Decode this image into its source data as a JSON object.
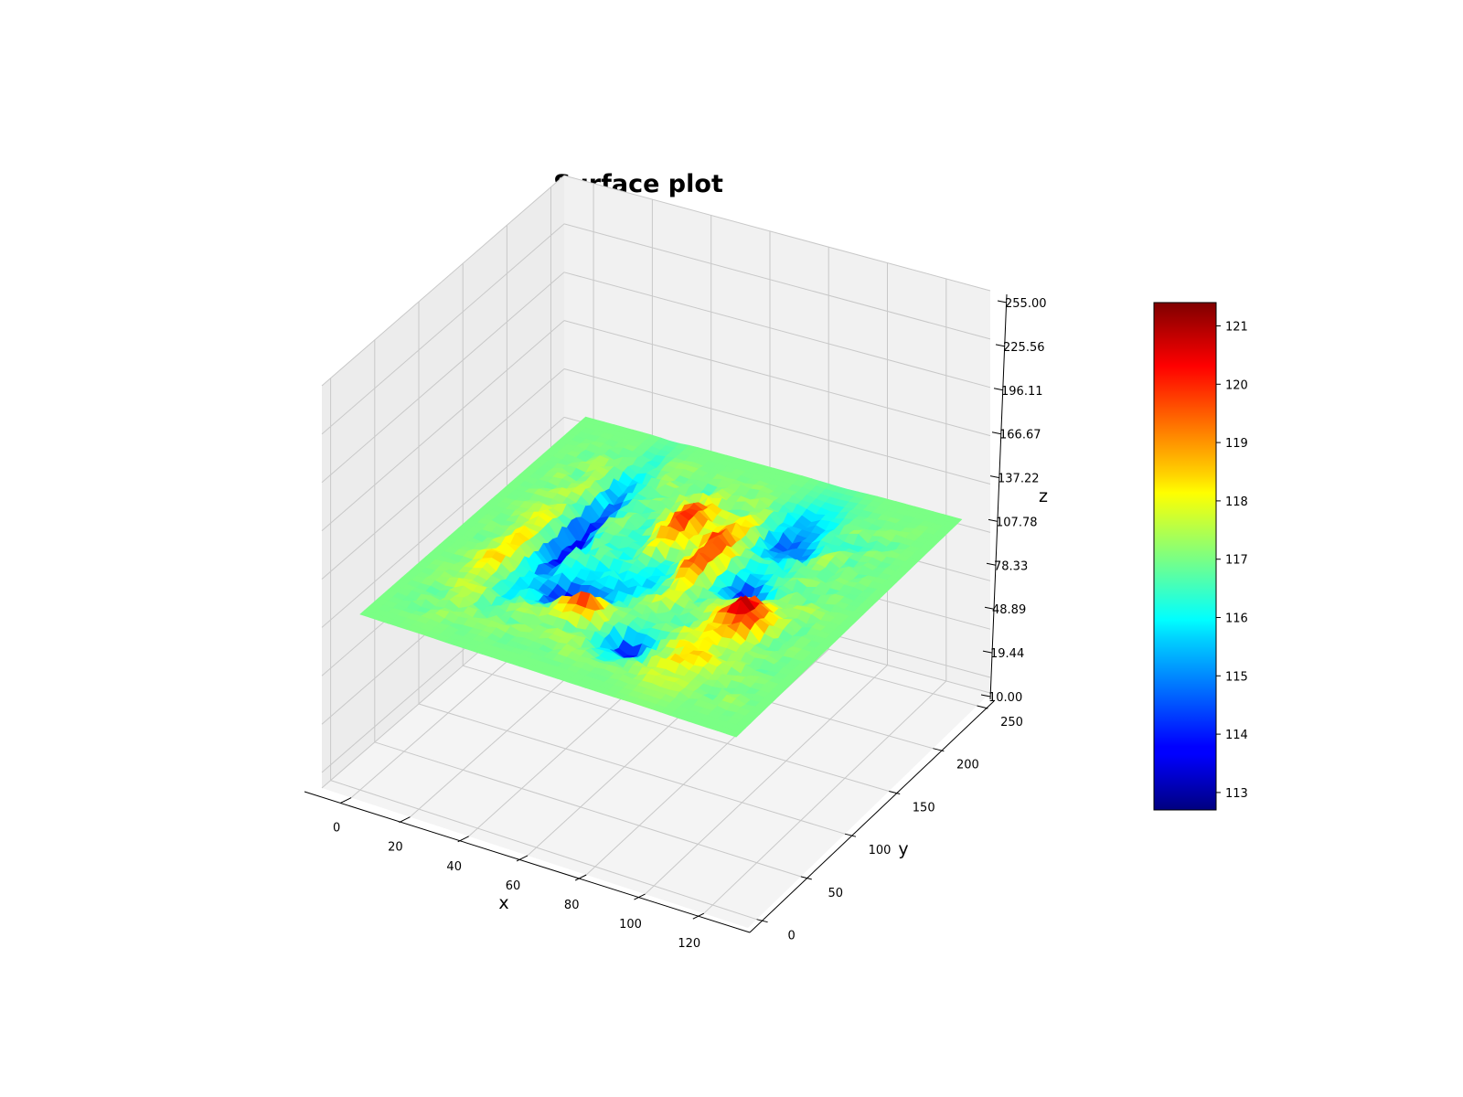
{
  "chart_data": {
    "type": "surface",
    "title": "Surface plot",
    "xlabel": "x",
    "ylabel": "y",
    "zlabel": "z",
    "xlim": [
      -10,
      135
    ],
    "ylim": [
      -10,
      265
    ],
    "zlim": [
      10,
      255
    ],
    "x_ticks": [
      "0",
      "20",
      "40",
      "60",
      "80",
      "100",
      "120"
    ],
    "x_tick_values": [
      0,
      20,
      40,
      60,
      80,
      100,
      120
    ],
    "y_ticks": [
      "0",
      "50",
      "100",
      "150",
      "200",
      "250"
    ],
    "y_tick_values": [
      0,
      50,
      100,
      150,
      200,
      250
    ],
    "z_ticks": [
      "10.00",
      "19.44",
      "48.89",
      "78.33",
      "107.78",
      "137.22",
      "166.67",
      "196.11",
      "225.56",
      "255.00"
    ],
    "z_tick_values": [
      10,
      19.44,
      48.89,
      78.33,
      107.78,
      137.22,
      166.67,
      196.11,
      225.56,
      255
    ],
    "colorbar": {
      "colormap": "jet",
      "min": 112.7,
      "max": 121.4,
      "ticks": [
        "113",
        "114",
        "115",
        "116",
        "117",
        "118",
        "119",
        "120",
        "121"
      ],
      "tick_values": [
        113,
        114,
        115,
        116,
        117,
        118,
        119,
        120,
        121
      ]
    },
    "surface": {
      "x_range": [
        0,
        128
      ],
      "y_range": [
        0,
        256
      ],
      "base_value": 117,
      "features": [
        {
          "x": 55,
          "y": 70,
          "value": 121.2,
          "sx": 5,
          "sy": 7
        },
        {
          "x": 73,
          "y": 148,
          "value": 120.8,
          "sx": 4,
          "sy": 30
        },
        {
          "x": 100,
          "y": 105,
          "value": 120.9,
          "sx": 5,
          "sy": 12
        },
        {
          "x": 58,
          "y": 170,
          "value": 120.4,
          "sx": 4,
          "sy": 20
        },
        {
          "x": 45,
          "y": 88,
          "value": 113.0,
          "sx": 6,
          "sy": 10
        },
        {
          "x": 30,
          "y": 150,
          "value": 113.4,
          "sx": 3,
          "sy": 45
        },
        {
          "x": 90,
          "y": 140,
          "value": 113.8,
          "sx": 5,
          "sy": 8
        },
        {
          "x": 75,
          "y": 55,
          "value": 114.0,
          "sx": 5,
          "sy": 10
        },
        {
          "x": 88,
          "y": 200,
          "value": 114.6,
          "sx": 6,
          "sy": 25
        },
        {
          "x": 62,
          "y": 125,
          "value": 115.6,
          "sx": 14,
          "sy": 28
        },
        {
          "x": 20,
          "y": 110,
          "value": 118.6,
          "sx": 4,
          "sy": 40
        },
        {
          "x": 95,
          "y": 60,
          "value": 118.4,
          "sx": 6,
          "sy": 25
        }
      ]
    }
  }
}
